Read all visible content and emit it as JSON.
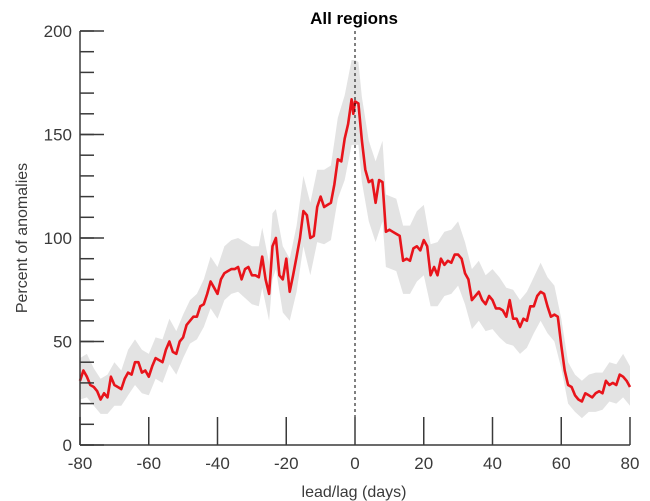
{
  "chart_data": {
    "type": "line",
    "title": "All regions",
    "xlabel": "lead/lag (days)",
    "ylabel": "Percent of anomalies",
    "xlim": [
      -80,
      80
    ],
    "ylim": [
      0,
      200
    ],
    "x_ticks": [
      -80,
      -60,
      -40,
      -20,
      0,
      20,
      40,
      60,
      80
    ],
    "y_ticks": [
      0,
      50,
      100,
      150,
      200
    ],
    "grid": false,
    "reference_line": {
      "x": 0,
      "style": "dashed"
    },
    "colors": {
      "line": "#e8141b",
      "band": "#e3e3e3",
      "axis": "#3a3a3a"
    },
    "series": [
      {
        "values": [
          [
            -80,
            31
          ],
          [
            -79,
            36
          ],
          [
            -78,
            33
          ],
          [
            -77,
            29
          ],
          [
            -76,
            28
          ],
          [
            -75,
            26
          ],
          [
            -74,
            22
          ],
          [
            -73,
            25
          ],
          [
            -72,
            23
          ],
          [
            -71,
            33
          ],
          [
            -70,
            29
          ],
          [
            -69,
            28
          ],
          [
            -68,
            27
          ],
          [
            -67,
            32
          ],
          [
            -66,
            35
          ],
          [
            -65,
            34
          ],
          [
            -64,
            40
          ],
          [
            -63,
            40
          ],
          [
            -62,
            35
          ],
          [
            -61,
            36
          ],
          [
            -60,
            33
          ],
          [
            -59,
            38
          ],
          [
            -58,
            42
          ],
          [
            -57,
            41
          ],
          [
            -56,
            40
          ],
          [
            -55,
            46
          ],
          [
            -54,
            50
          ],
          [
            -53,
            45
          ],
          [
            -52,
            44
          ],
          [
            -51,
            50
          ],
          [
            -50,
            52
          ],
          [
            -49,
            58
          ],
          [
            -48,
            60
          ],
          [
            -47,
            62
          ],
          [
            -46,
            62
          ],
          [
            -45,
            67
          ],
          [
            -44,
            68
          ],
          [
            -43,
            73
          ],
          [
            -42,
            79
          ],
          [
            -41,
            76
          ],
          [
            -40,
            73
          ],
          [
            -39,
            80
          ],
          [
            -38,
            83
          ],
          [
            -37,
            84
          ],
          [
            -36,
            85
          ],
          [
            -35,
            85
          ],
          [
            -34,
            86
          ],
          [
            -33,
            80
          ],
          [
            -32,
            85
          ],
          [
            -31,
            86
          ],
          [
            -30,
            82
          ],
          [
            -29,
            82
          ],
          [
            -28,
            81
          ],
          [
            -27,
            91
          ],
          [
            -26,
            80
          ],
          [
            -25,
            73
          ],
          [
            -24,
            96
          ],
          [
            -23,
            100
          ],
          [
            -22,
            82
          ],
          [
            -21,
            80
          ],
          [
            -20,
            90
          ],
          [
            -19,
            74
          ],
          [
            -18,
            82
          ],
          [
            -17,
            91
          ],
          [
            -16,
            100
          ],
          [
            -15,
            113
          ],
          [
            -14,
            111
          ],
          [
            -13,
            100
          ],
          [
            -12,
            101
          ],
          [
            -11,
            115
          ],
          [
            -10,
            120
          ],
          [
            -9,
            115
          ],
          [
            -8,
            116
          ],
          [
            -7,
            117
          ],
          [
            -6,
            126
          ],
          [
            -5,
            138
          ],
          [
            -4,
            137
          ],
          [
            -3,
            148
          ],
          [
            -2,
            155
          ],
          [
            -1,
            167
          ],
          [
            -0.5,
            160
          ],
          [
            0,
            166
          ],
          [
            1,
            165
          ],
          [
            2,
            147
          ],
          [
            3,
            133
          ],
          [
            4,
            127
          ],
          [
            5,
            128
          ],
          [
            6,
            117
          ],
          [
            7,
            128
          ],
          [
            8,
            127
          ],
          [
            9,
            103
          ],
          [
            10,
            104
          ],
          [
            11,
            103
          ],
          [
            12,
            102
          ],
          [
            13,
            101
          ],
          [
            14,
            89
          ],
          [
            15,
            90
          ],
          [
            16,
            89
          ],
          [
            17,
            95
          ],
          [
            18,
            96
          ],
          [
            19,
            94
          ],
          [
            20,
            99
          ],
          [
            21,
            96
          ],
          [
            22,
            82
          ],
          [
            23,
            86
          ],
          [
            24,
            82
          ],
          [
            25,
            90
          ],
          [
            26,
            87
          ],
          [
            27,
            89
          ],
          [
            28,
            88
          ],
          [
            29,
            92
          ],
          [
            30,
            92
          ],
          [
            31,
            90
          ],
          [
            32,
            83
          ],
          [
            33,
            80
          ],
          [
            34,
            70
          ],
          [
            35,
            72
          ],
          [
            36,
            74
          ],
          [
            37,
            70
          ],
          [
            38,
            68
          ],
          [
            39,
            72
          ],
          [
            40,
            70
          ],
          [
            41,
            66
          ],
          [
            42,
            66
          ],
          [
            43,
            65
          ],
          [
            44,
            62
          ],
          [
            45,
            70
          ],
          [
            46,
            61
          ],
          [
            47,
            61
          ],
          [
            48,
            57
          ],
          [
            49,
            61
          ],
          [
            50,
            60
          ],
          [
            51,
            67
          ],
          [
            52,
            67
          ],
          [
            53,
            72
          ],
          [
            54,
            74
          ],
          [
            55,
            73
          ],
          [
            56,
            67
          ],
          [
            57,
            62
          ],
          [
            58,
            63
          ],
          [
            59,
            62
          ],
          [
            60,
            48
          ],
          [
            61,
            36
          ],
          [
            62,
            29
          ],
          [
            63,
            28
          ],
          [
            64,
            24
          ],
          [
            65,
            22
          ],
          [
            66,
            21
          ],
          [
            67,
            25
          ],
          [
            68,
            24
          ],
          [
            69,
            23
          ],
          [
            70,
            25
          ],
          [
            71,
            26
          ],
          [
            72,
            25
          ],
          [
            73,
            31
          ],
          [
            74,
            29
          ],
          [
            75,
            30
          ],
          [
            76,
            29
          ],
          [
            77,
            34
          ],
          [
            78,
            33
          ],
          [
            79,
            31
          ],
          [
            80,
            28
          ]
        ]
      }
    ],
    "band": [
      [
        -80,
        22,
        42
      ],
      [
        -78,
        23,
        44
      ],
      [
        -76,
        19,
        37
      ],
      [
        -74,
        15,
        32
      ],
      [
        -72,
        15,
        34
      ],
      [
        -70,
        19,
        40
      ],
      [
        -68,
        19,
        36
      ],
      [
        -66,
        24,
        46
      ],
      [
        -64,
        29,
        51
      ],
      [
        -62,
        25,
        46
      ],
      [
        -60,
        24,
        44
      ],
      [
        -58,
        32,
        52
      ],
      [
        -56,
        30,
        51
      ],
      [
        -54,
        39,
        61
      ],
      [
        -52,
        34,
        55
      ],
      [
        -50,
        42,
        63
      ],
      [
        -48,
        49,
        70
      ],
      [
        -46,
        51,
        73
      ],
      [
        -44,
        57,
        80
      ],
      [
        -42,
        66,
        91
      ],
      [
        -40,
        61,
        86
      ],
      [
        -38,
        70,
        96
      ],
      [
        -36,
        73,
        99
      ],
      [
        -34,
        74,
        100
      ],
      [
        -32,
        71,
        98
      ],
      [
        -30,
        68,
        96
      ],
      [
        -28,
        67,
        96
      ],
      [
        -27,
        76,
        105
      ],
      [
        -25,
        60,
        88
      ],
      [
        -24,
        80,
        112
      ],
      [
        -23,
        85,
        114
      ],
      [
        -21,
        64,
        96
      ],
      [
        -19,
        60,
        90
      ],
      [
        -17,
        74,
        106
      ],
      [
        -15,
        96,
        130
      ],
      [
        -13,
        82,
        117
      ],
      [
        -11,
        98,
        133
      ],
      [
        -9,
        97,
        133
      ],
      [
        -7,
        99,
        135
      ],
      [
        -5,
        119,
        158
      ],
      [
        -3,
        128,
        169
      ],
      [
        -1,
        145,
        186
      ],
      [
        0,
        145,
        186
      ],
      [
        1,
        145,
        185
      ],
      [
        2,
        127,
        168
      ],
      [
        4,
        108,
        147
      ],
      [
        6,
        98,
        137
      ],
      [
        8,
        108,
        147
      ],
      [
        9,
        86,
        121
      ],
      [
        12,
        84,
        119
      ],
      [
        14,
        73,
        106
      ],
      [
        16,
        73,
        106
      ],
      [
        18,
        79,
        113
      ],
      [
        20,
        82,
        116
      ],
      [
        22,
        67,
        97
      ],
      [
        24,
        67,
        98
      ],
      [
        26,
        72,
        103
      ],
      [
        28,
        73,
        104
      ],
      [
        30,
        77,
        108
      ],
      [
        32,
        68,
        98
      ],
      [
        34,
        56,
        85
      ],
      [
        36,
        60,
        89
      ],
      [
        38,
        55,
        82
      ],
      [
        40,
        56,
        85
      ],
      [
        42,
        52,
        81
      ],
      [
        44,
        49,
        76
      ],
      [
        46,
        48,
        75
      ],
      [
        48,
        44,
        70
      ],
      [
        50,
        47,
        74
      ],
      [
        52,
        54,
        81
      ],
      [
        54,
        60,
        88
      ],
      [
        56,
        54,
        81
      ],
      [
        58,
        50,
        77
      ],
      [
        60,
        37,
        61
      ],
      [
        62,
        20,
        40
      ],
      [
        64,
        16,
        34
      ],
      [
        66,
        13,
        31
      ],
      [
        68,
        16,
        34
      ],
      [
        70,
        16,
        35
      ],
      [
        72,
        17,
        35
      ],
      [
        74,
        21,
        40
      ],
      [
        76,
        20,
        39
      ],
      [
        78,
        23,
        44
      ],
      [
        80,
        19,
        38
      ]
    ]
  }
}
